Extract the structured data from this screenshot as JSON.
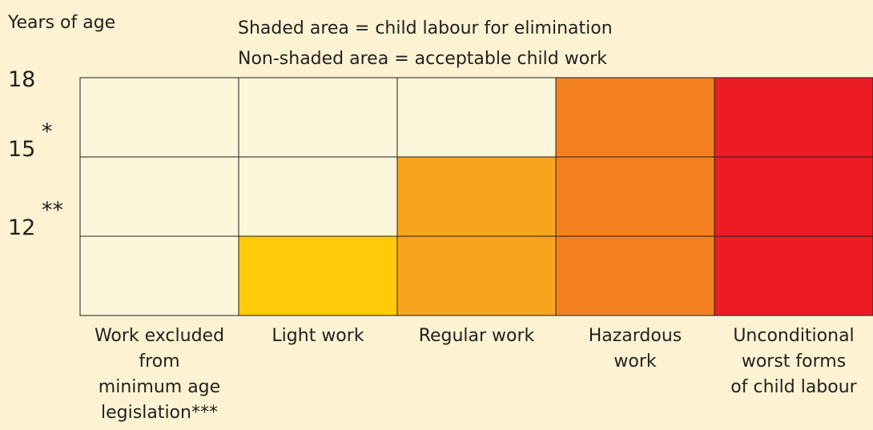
{
  "diagram": {
    "axis_title": "Years of age",
    "legend": [
      "Shaded area = child labour for elimination",
      "Non-shaded area = acceptable child work"
    ],
    "age_labels": [
      {
        "label": "18"
      },
      {
        "label": "15",
        "note": "*"
      },
      {
        "label": "12",
        "note": "**"
      }
    ],
    "background": "#fdf3d2",
    "columns": [
      {
        "label": [
          "Work excluded",
          "from",
          "minimum age",
          "legislation***"
        ],
        "cells": [
          "#fef6da",
          "#fef6da",
          "#fef6da"
        ]
      },
      {
        "label": [
          "Light work"
        ],
        "cells": [
          "#fef6da",
          "#fef6da",
          "#ffcb08"
        ]
      },
      {
        "label": [
          "Regular work"
        ],
        "cells": [
          "#fef6da",
          "#f7a51e",
          "#f7a51e"
        ]
      },
      {
        "label": [
          "Hazardous",
          "work"
        ],
        "cells": [
          "#f48120",
          "#f48120",
          "#f48120"
        ]
      },
      {
        "label": [
          "Unconditional",
          "worst forms",
          "of child labour"
        ],
        "cells": [
          "#ed1c24",
          "#ed1c24",
          "#ed1c24"
        ]
      }
    ]
  }
}
